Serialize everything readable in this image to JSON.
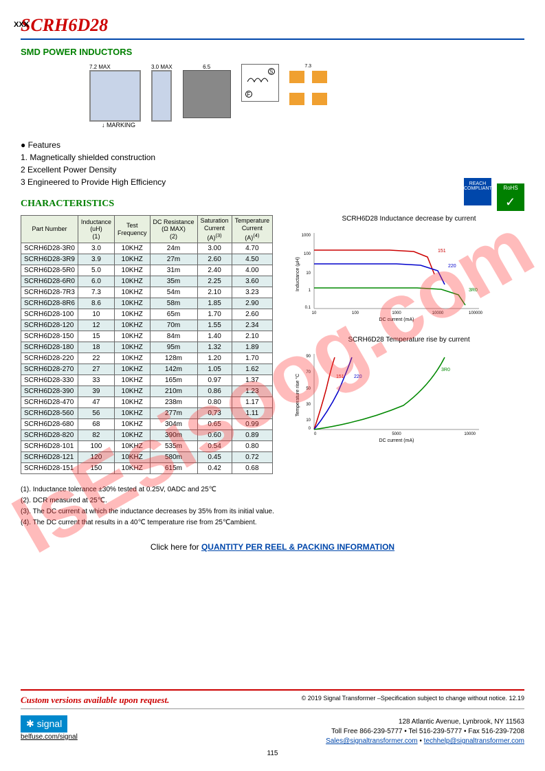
{
  "title": "SCRH6D28",
  "subtitle": "SMD POWER INDUCTORS",
  "diagrams": {
    "dim1": "7.2 MAX",
    "dim2": "7.2 MAX",
    "dim3": "3.0 MAX",
    "dim4": "6.5",
    "dim5": "6.5",
    "dim6": "7.3",
    "marking": "MARKING",
    "xxx": "XXX",
    "s": "S",
    "f": "F"
  },
  "features": {
    "header": "● Features",
    "items": [
      "1.  Magnetically shielded construction",
      "2   Excellent Power Density",
      "3   Engineered to Provide High Efficiency"
    ]
  },
  "characteristics_title": "CHARACTERISTICS",
  "table": {
    "headers": [
      "Part Number",
      "Inductance\n(uH)\n(1)",
      "Test\nFrequency",
      "DC Resistance\n(Ω MAX)\n(2)",
      "Saturation\nCurrent\n(A)",
      "Temperature\nCurrent\n(A)"
    ],
    "header_super": [
      "",
      "",
      "",
      "",
      "(3)",
      "(4)"
    ],
    "rows": [
      [
        "SCRH6D28-3R0",
        "3.0",
        "10KHZ",
        "24m",
        "3.00",
        "4.70"
      ],
      [
        "SCRH6D28-3R9",
        "3.9",
        "10KHZ",
        "27m",
        "2.60",
        "4.50"
      ],
      [
        "SCRH6D28-5R0",
        "5.0",
        "10KHZ",
        "31m",
        "2.40",
        "4.00"
      ],
      [
        "SCRH6D28-6R0",
        "6.0",
        "10KHZ",
        "35m",
        "2.25",
        "3.60"
      ],
      [
        "SCRH6D28-7R3",
        "7.3",
        "10KHZ",
        "54m",
        "2.10",
        "3.23"
      ],
      [
        "SCRH6D28-8R6",
        "8.6",
        "10KHZ",
        "58m",
        "1.85",
        "2.90"
      ],
      [
        "SCRH6D28-100",
        "10",
        "10KHZ",
        "65m",
        "1.70",
        "2.60"
      ],
      [
        "SCRH6D28-120",
        "12",
        "10KHZ",
        "70m",
        "1.55",
        "2.34"
      ],
      [
        "SCRH6D28-150",
        "15",
        "10KHZ",
        "84m",
        "1.40",
        "2.10"
      ],
      [
        "SCRH6D28-180",
        "18",
        "10KHZ",
        "95m",
        "1.32",
        "1.89"
      ],
      [
        "SCRH6D28-220",
        "22",
        "10KHZ",
        "128m",
        "1.20",
        "1.70"
      ],
      [
        "SCRH6D28-270",
        "27",
        "10KHZ",
        "142m",
        "1.05",
        "1.62"
      ],
      [
        "SCRH6D28-330",
        "33",
        "10KHZ",
        "165m",
        "0.97",
        "1.37"
      ],
      [
        "SCRH6D28-390",
        "39",
        "10KHZ",
        "210m",
        "0.86",
        "1.23"
      ],
      [
        "SCRH6D28-470",
        "47",
        "10KHZ",
        "238m",
        "0.80",
        "1.17"
      ],
      [
        "SCRH6D28-560",
        "56",
        "10KHZ",
        "277m",
        "0.73",
        "1.11"
      ],
      [
        "SCRH6D28-680",
        "68",
        "10KHZ",
        "304m",
        "0.65",
        "0.99"
      ],
      [
        "SCRH6D28-820",
        "82",
        "10KHZ",
        "390m",
        "0.60",
        "0.89"
      ],
      [
        "SCRH6D28-101",
        "100",
        "10KHZ",
        "535m",
        "0.54",
        "0.80"
      ],
      [
        "SCRH6D28-121",
        "120",
        "10KHZ",
        "580m",
        "0.45",
        "0.72"
      ],
      [
        "SCRH6D28-151",
        "150",
        "10KHZ",
        "615m",
        "0.42",
        "0.68"
      ]
    ]
  },
  "charts": {
    "chart1": {
      "title": "SCRH6D28 Inductance decrease by current",
      "ylabel": "Inductance (μH)",
      "xlabel": "DC current (mA)",
      "yticks": [
        "0.1",
        "1",
        "10",
        "100",
        "1000"
      ],
      "xticks": [
        "10",
        "100",
        "1000",
        "10000",
        "100000"
      ],
      "series": [
        {
          "label": "151",
          "color": "#cc0000"
        },
        {
          "label": "220",
          "color": "#0000cc"
        },
        {
          "label": "3R0",
          "color": "#008800"
        }
      ]
    },
    "chart2": {
      "title": "SCRH6D28 Temperature rise by current",
      "ylabel": "Temperature rise °C",
      "xlabel": "DC current (mA)",
      "yticks": [
        "0",
        "10",
        "20",
        "30",
        "40",
        "50",
        "60",
        "70",
        "80",
        "90"
      ],
      "xticks": [
        "0",
        "1000",
        "2000",
        "3000",
        "4000",
        "5000",
        "6000",
        "7000",
        "8000",
        "9000",
        "10000"
      ],
      "series": [
        {
          "label": "151",
          "color": "#cc0000"
        },
        {
          "label": "220",
          "color": "#0000cc"
        },
        {
          "label": "3R0",
          "color": "#008800"
        }
      ]
    }
  },
  "notes": [
    "(1). Inductance tolerance  ±30% tested at 0.25V, 0ADC and 25℃",
    "(2). DCR measured at 25℃.",
    "(3). The DC current at which the inductance decreases by 35% from its initial value.",
    "(4). The DC current that results in a 40℃  temperature rise from 25℃ambient."
  ],
  "link": {
    "prefix": "Click here for ",
    "text": "QUANTITY PER REEL & PACKING INFORMATION"
  },
  "footer": {
    "custom": "Custom versions available upon request.",
    "copyright": "© 2019 Signal Transformer –Specification subject to change without notice. 12.19",
    "address": "128 Atlantic Avenue, Lynbrook, NY 11563",
    "phone": "Toll Free 866-239-5777 • Tel 516-239-5777 • Fax 516-239-7208",
    "emails": {
      "sales": "Sales@signaltransformer.com",
      "tech": "techhelp@signaltransformer.com"
    },
    "logo": "signal",
    "belfuse": "belfuse.com/signal",
    "pagenum": "115"
  },
  "badges": {
    "reach": "REACH\nCOMPLIANT",
    "rohs": "RoHS"
  },
  "watermark": "IsEsisoog.com"
}
